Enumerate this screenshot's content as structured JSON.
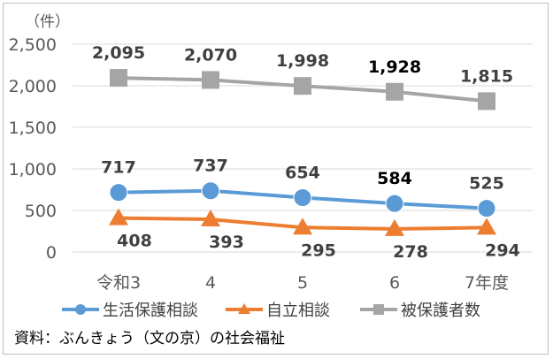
{
  "chart_data": {
    "type": "line",
    "unit_label": "（件）",
    "categories": [
      "令和3",
      "4",
      "5",
      "6",
      "7年度"
    ],
    "y_range": [
      0,
      2500
    ],
    "y_ticks": [
      "0",
      "500",
      "1,000",
      "1,500",
      "2,000",
      "2,500"
    ],
    "y_tick_values": [
      0,
      500,
      1000,
      1500,
      2000,
      2500
    ],
    "grid": true,
    "legend_position": "bottom",
    "series": [
      {
        "name": "生活保護相談",
        "values": [
          717,
          737,
          654,
          584,
          525
        ],
        "labels": [
          "717",
          "737",
          "654",
          "584",
          "525"
        ],
        "label_side": "above",
        "color": "#5b9bd5",
        "marker": "circle"
      },
      {
        "name": "自立相談",
        "values": [
          408,
          393,
          295,
          278,
          294
        ],
        "labels": [
          "408",
          "393",
          "295",
          "278",
          "294"
        ],
        "label_side": "below",
        "color": "#ed7d31",
        "marker": "triangle"
      },
      {
        "name": "被保護者数",
        "values": [
          2095,
          2070,
          1998,
          1928,
          1815
        ],
        "labels": [
          "2,095",
          "2,070",
          "1,998",
          "1,928",
          "1,815"
        ],
        "label_side": "above",
        "color": "#a5a5a5",
        "marker": "square"
      }
    ],
    "source": "資料：ぶんきょう（文の京）の社会福祉"
  }
}
